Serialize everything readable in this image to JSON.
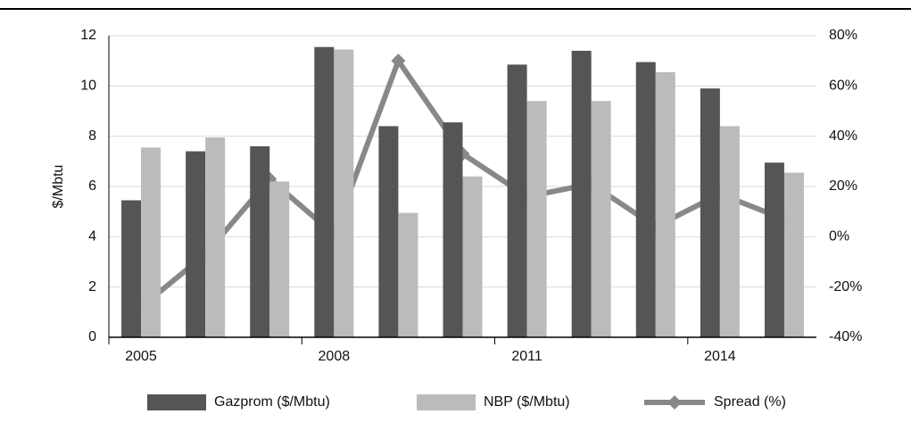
{
  "chart_data": {
    "type": "bar",
    "categories": [
      "2005",
      null,
      null,
      "2008",
      null,
      null,
      "2011",
      null,
      null,
      "2014",
      null
    ],
    "series": [
      {
        "name": "Gazprom ($/Mbtu)",
        "color": "#555555",
        "values": [
          5.45,
          7.4,
          7.6,
          11.55,
          8.4,
          8.55,
          10.85,
          11.4,
          10.95,
          9.9,
          6.95
        ]
      },
      {
        "name": "NBP ($/Mbtu)",
        "color": "#bbbbbb",
        "values": [
          7.55,
          7.95,
          6.2,
          11.45,
          4.95,
          6.4,
          9.4,
          9.4,
          10.55,
          8.4,
          6.55
        ]
      },
      {
        "name": "Spread (%)",
        "color": "#888888",
        "type": "line",
        "axis": "y2",
        "values": [
          -28,
          -7,
          23,
          1,
          70,
          33,
          16,
          21,
          4,
          17,
          7
        ]
      }
    ],
    "y_label": "$/Mbtu",
    "ylim": [
      0,
      12
    ],
    "yticks": [
      0,
      2,
      4,
      6,
      8,
      10,
      12
    ],
    "y2lim": [
      -40,
      80
    ],
    "y2ticks": [
      {
        "value": -40,
        "label": "-40%"
      },
      {
        "value": -20,
        "label": "-20%"
      },
      {
        "value": 0,
        "label": "0%"
      },
      {
        "value": 20,
        "label": "20%"
      },
      {
        "value": 40,
        "label": "40%"
      },
      {
        "value": 60,
        "label": "60%"
      },
      {
        "value": 80,
        "label": "80%"
      }
    ],
    "grid": true
  }
}
